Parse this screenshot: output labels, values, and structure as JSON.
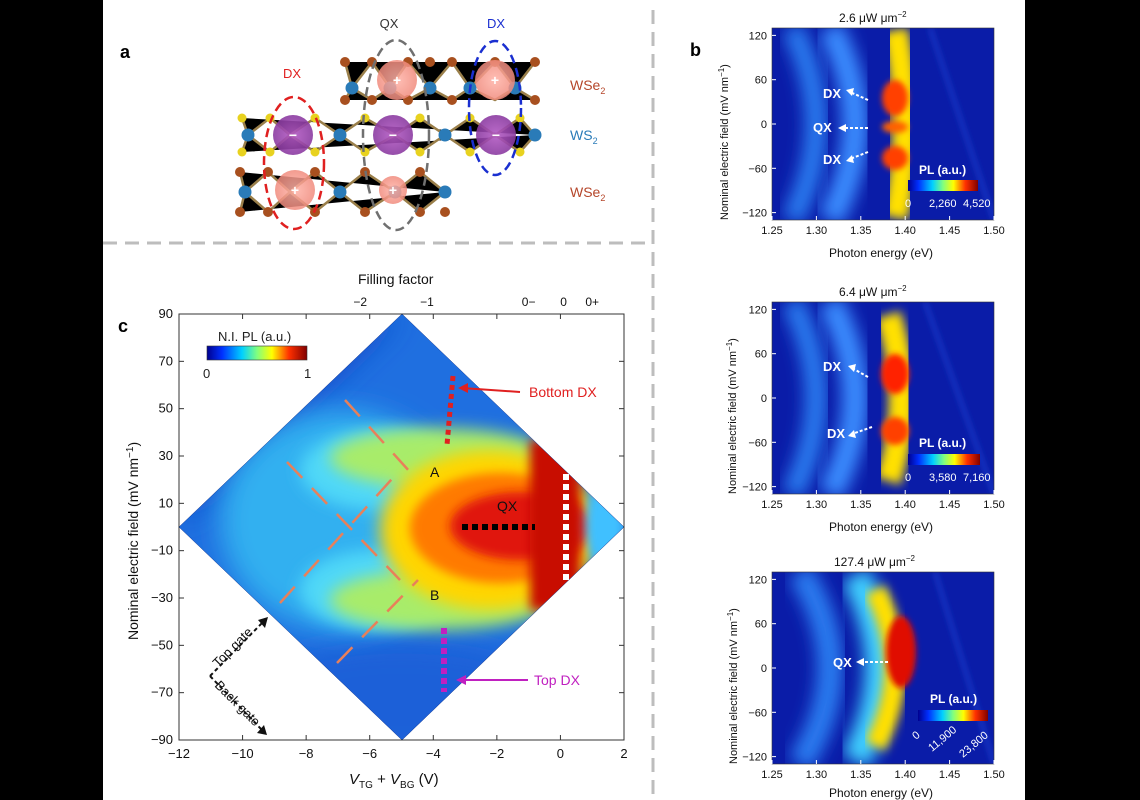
{
  "panel_letters": {
    "a": "a",
    "b": "b",
    "c": "c"
  },
  "panel_a": {
    "labels": {
      "qx": "QX",
      "dx_left": "DX",
      "dx_right": "DX"
    },
    "layers": [
      {
        "base": "WSe",
        "sub": "2",
        "color": "#b5462a"
      },
      {
        "base": "WS",
        "sub": "2",
        "color": "#2a7bb8"
      },
      {
        "base": "WSe",
        "sub": "2",
        "color": "#b5462a"
      }
    ],
    "charges": {
      "electron": "−",
      "hole": "+"
    }
  },
  "panel_c": {
    "top_axis_title": "Filling factor",
    "top_ticks": [
      "−2",
      "−1",
      "0−",
      "0",
      "0+"
    ],
    "colorbar": {
      "title": "N.I. PL (a.u.)",
      "min": "0",
      "max": "1"
    },
    "point_labels": {
      "a": "A",
      "b": "B",
      "qx": "QX"
    },
    "annotations": {
      "bottom_dx": "Bottom DX",
      "top_dx": "Top DX"
    },
    "gate_labels": {
      "top": "Top gate",
      "back": "Back gate"
    },
    "ylabel_pre": "Nominal electric field (mV nm",
    "ylabel_exp": "−1",
    "ylabel_post": ")"
  },
  "panel_b": {
    "xlabel": "Photon energy (eV)",
    "ylabel_pre": "Nominal electric field (mV nm",
    "ylabel_exp": "−1",
    "ylabel_post": ")",
    "subplots": [
      {
        "power_value": "2.6 μW μm",
        "power_exp": "−2",
        "labels": [
          "DX",
          "QX",
          "DX"
        ],
        "colorbar_title": "PL (a.u.)",
        "colorbar_ticks": [
          "0",
          "2,260",
          "4,520"
        ]
      },
      {
        "power_value": "6.4 μW μm",
        "power_exp": "−2",
        "labels": [
          "DX",
          "DX"
        ],
        "colorbar_title": "PL (a.u.)",
        "colorbar_ticks": [
          "0",
          "3,580",
          "7,160"
        ]
      },
      {
        "power_value": "127.4 μW μm",
        "power_exp": "−2",
        "labels": [
          "QX"
        ],
        "colorbar_title": "PL (a.u.)",
        "colorbar_ticks": [
          "0",
          "11,900",
          "23,800"
        ]
      }
    ]
  },
  "chart_data": [
    {
      "type": "heatmap",
      "title": "",
      "xlabel": "V_TG + V_BG (V)",
      "ylabel": "Nominal electric field (mV nm^-1)",
      "x_ticks": [
        -12,
        -10,
        -8,
        -6,
        -4,
        -2,
        0,
        2
      ],
      "y_ticks": [
        90,
        70,
        50,
        30,
        10,
        -10,
        -30,
        -50,
        -70,
        -90
      ],
      "xlim": [
        -12,
        2
      ],
      "ylim": [
        -90,
        90
      ],
      "top_axis": {
        "label": "Filling factor",
        "ticks": [
          "−2",
          "−1",
          "0−",
          "0",
          "0+"
        ],
        "positions": [
          -6.3,
          -4.2,
          -1.0,
          0.1,
          1.0
        ]
      },
      "colorbar": {
        "label": "N.I. PL (a.u.)",
        "range": [
          0,
          1
        ]
      },
      "annotations": [
        {
          "text": "A",
          "x": -3.8,
          "y": 22
        },
        {
          "text": "B",
          "x": -3.8,
          "y": -30
        },
        {
          "text": "QX",
          "x": -1.8,
          "y": 8
        },
        {
          "text": "Bottom DX",
          "x": -3.4,
          "y": 38
        },
        {
          "text": "Top DX",
          "x": -3.8,
          "y": -65
        }
      ]
    },
    {
      "type": "heatmap",
      "title": "2.6 μW μm−2",
      "xlabel": "Photon energy (eV)",
      "ylabel": "Nominal electric field (mV nm−1)",
      "x_ticks": [
        1.25,
        1.3,
        1.35,
        1.4,
        1.45,
        1.5
      ],
      "y_ticks": [
        120,
        60,
        0,
        -60,
        -120
      ],
      "xlim": [
        1.25,
        1.5
      ],
      "ylim": [
        -130,
        130
      ],
      "colorbar": {
        "label": "PL (a.u.)",
        "ticks": [
          0,
          2260,
          4520
        ]
      },
      "annotations": [
        "DX",
        "QX",
        "DX"
      ]
    },
    {
      "type": "heatmap",
      "title": "6.4 μW μm−2",
      "xlabel": "Photon energy (eV)",
      "ylabel": "Nominal electric field (mV nm−1)",
      "x_ticks": [
        1.25,
        1.3,
        1.35,
        1.4,
        1.45,
        1.5
      ],
      "y_ticks": [
        120,
        60,
        0,
        -60,
        -120
      ],
      "xlim": [
        1.25,
        1.5
      ],
      "ylim": [
        -130,
        130
      ],
      "colorbar": {
        "label": "PL (a.u.)",
        "ticks": [
          0,
          3580,
          7160
        ]
      },
      "annotations": [
        "DX",
        "DX"
      ]
    },
    {
      "type": "heatmap",
      "title": "127.4 μW μm−2",
      "xlabel": "Photon energy (eV)",
      "ylabel": "Nominal electric field (mV nm−1)",
      "x_ticks": [
        1.25,
        1.3,
        1.35,
        1.4,
        1.45,
        1.5
      ],
      "y_ticks": [
        120,
        60,
        0,
        -60,
        -120
      ],
      "xlim": [
        1.25,
        1.5
      ],
      "ylim": [
        -130,
        130
      ],
      "colorbar": {
        "label": "PL (a.u.)",
        "ticks": [
          0,
          11900,
          23800
        ]
      },
      "annotations": [
        "QX"
      ]
    }
  ]
}
